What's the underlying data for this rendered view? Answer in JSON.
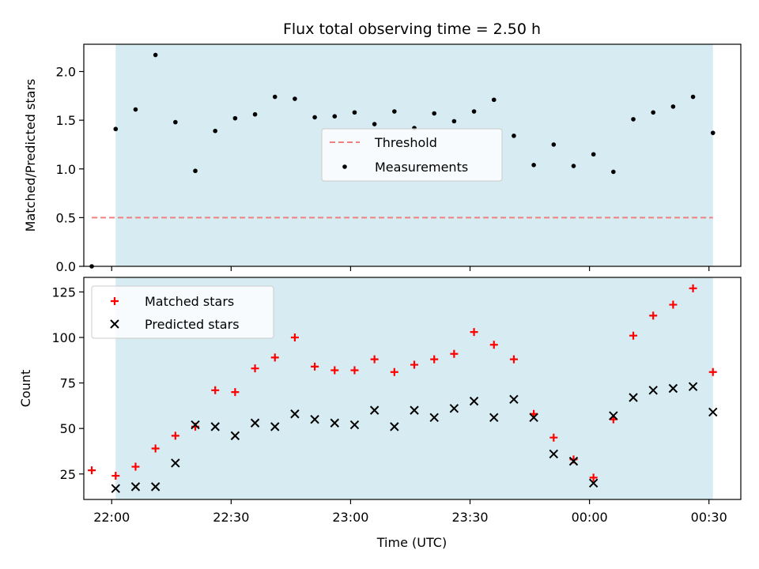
{
  "figure": {
    "title": "Flux total observing time = 2.50 h",
    "xlabel": "Time (UTC)"
  },
  "colors": {
    "shade": "#add8e6",
    "threshold": "#f08080",
    "measurement": "#000000",
    "matched": "#ff0000",
    "predicted": "#000000"
  },
  "chart_data": [
    {
      "type": "scatter",
      "panel": "top",
      "ylabel": "Matched/Predicted stars",
      "xlim": [
        "21:53",
        "00:38"
      ],
      "ylim": [
        0,
        2.28
      ],
      "yticks": [
        0.0,
        0.5,
        1.0,
        1.5,
        2.0
      ],
      "ytick_labels": [
        "0.0",
        "0.5",
        "1.0",
        "1.5",
        "2.0"
      ],
      "shaded_span": [
        "22:01",
        "00:31"
      ],
      "threshold": {
        "name": "Threshold",
        "value": 0.5,
        "x_range": [
          "21:55",
          "00:31"
        ]
      },
      "legend": {
        "position": "center",
        "entries": [
          "Threshold",
          "Measurements"
        ]
      },
      "series": [
        {
          "name": "Measurements",
          "x": [
            "21:55",
            "22:01",
            "22:06",
            "22:11",
            "22:16",
            "22:21",
            "22:26",
            "22:31",
            "22:36",
            "22:41",
            "22:46",
            "22:51",
            "22:56",
            "23:01",
            "23:06",
            "23:11",
            "23:16",
            "23:21",
            "23:26",
            "23:31",
            "23:36",
            "23:41",
            "23:46",
            "23:51",
            "23:56",
            "00:01",
            "00:06",
            "00:11",
            "00:16",
            "00:21",
            "00:26",
            "00:31"
          ],
          "y": [
            0.0,
            1.41,
            1.61,
            2.17,
            1.48,
            0.98,
            1.39,
            1.52,
            1.56,
            1.74,
            1.72,
            1.53,
            1.54,
            1.58,
            1.46,
            1.59,
            1.42,
            1.57,
            1.49,
            1.59,
            1.71,
            1.34,
            1.04,
            1.25,
            1.03,
            1.15,
            0.97,
            1.51,
            1.58,
            1.64,
            1.74,
            1.37
          ]
        }
      ]
    },
    {
      "type": "scatter",
      "panel": "bottom",
      "ylabel": "Count",
      "xlim": [
        "21:53",
        "00:38"
      ],
      "ylim": [
        11,
        133
      ],
      "yticks": [
        25,
        50,
        75,
        100,
        125
      ],
      "ytick_labels": [
        "25",
        "50",
        "75",
        "100",
        "125"
      ],
      "xticks": [
        "22:00",
        "22:30",
        "23:00",
        "23:30",
        "00:00",
        "00:30"
      ],
      "xtick_labels": [
        "22:00",
        "22:30",
        "23:00",
        "23:30",
        "00:00",
        "00:30"
      ],
      "shaded_span": [
        "22:01",
        "00:31"
      ],
      "legend": {
        "position": "upper-left",
        "entries": [
          "Matched stars",
          "Predicted stars"
        ]
      },
      "series": [
        {
          "name": "Matched stars",
          "marker": "plus",
          "x": [
            "21:55",
            "22:01",
            "22:06",
            "22:11",
            "22:16",
            "22:21",
            "22:26",
            "22:31",
            "22:36",
            "22:41",
            "22:46",
            "22:51",
            "22:56",
            "23:01",
            "23:06",
            "23:11",
            "23:16",
            "23:21",
            "23:26",
            "23:31",
            "23:36",
            "23:41",
            "23:46",
            "23:51",
            "23:56",
            "00:01",
            "00:06",
            "00:11",
            "00:16",
            "00:21",
            "00:26",
            "00:31"
          ],
          "y": [
            27,
            24,
            29,
            39,
            46,
            51,
            71,
            70,
            83,
            89,
            100,
            84,
            82,
            82,
            88,
            81,
            85,
            88,
            91,
            103,
            96,
            88,
            58,
            45,
            33,
            23,
            55,
            101,
            112,
            118,
            127,
            81
          ]
        },
        {
          "name": "Predicted stars",
          "marker": "x",
          "x": [
            "22:01",
            "22:06",
            "22:11",
            "22:16",
            "22:21",
            "22:26",
            "22:31",
            "22:36",
            "22:41",
            "22:46",
            "22:51",
            "22:56",
            "23:01",
            "23:06",
            "23:11",
            "23:16",
            "23:21",
            "23:26",
            "23:31",
            "23:36",
            "23:41",
            "23:46",
            "23:51",
            "23:56",
            "00:01",
            "00:06",
            "00:11",
            "00:16",
            "00:21",
            "00:26",
            "00:31"
          ],
          "y": [
            17,
            18,
            18,
            31,
            52,
            51,
            46,
            53,
            51,
            58,
            55,
            53,
            52,
            60,
            51,
            60,
            56,
            61,
            65,
            56,
            66,
            56,
            36,
            32,
            20,
            57,
            67,
            71,
            72,
            73,
            59
          ]
        }
      ]
    }
  ]
}
